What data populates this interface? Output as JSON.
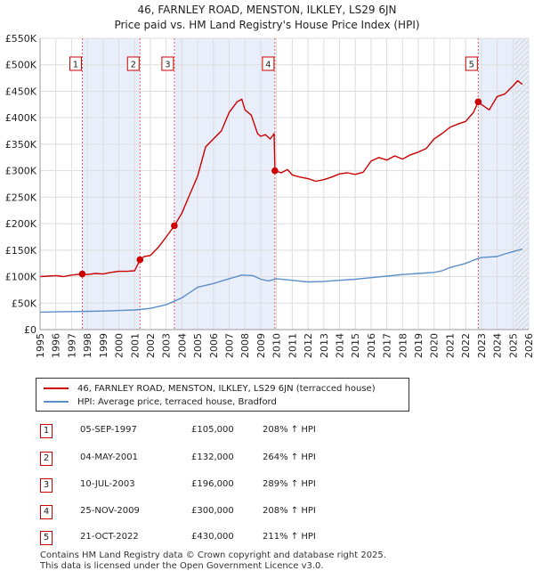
{
  "header": {
    "title": "46, FARNLEY ROAD, MENSTON, ILKLEY, LS29 6JN",
    "subtitle": "Price paid vs. HM Land Registry's House Price Index (HPI)"
  },
  "chart_data": {
    "type": "line",
    "title": "46, FARNLEY ROAD, MENSTON, ILKLEY, LS29 6JN",
    "subtitle": "Price paid vs. HM Land Registry's House Price Index (HPI)",
    "xlim": [
      1995,
      2026
    ],
    "ylim": [
      0,
      550000
    ],
    "x_ticks": [
      1995,
      1996,
      1997,
      1998,
      1999,
      2000,
      2001,
      2002,
      2003,
      2004,
      2005,
      2006,
      2007,
      2008,
      2009,
      2010,
      2011,
      2012,
      2013,
      2014,
      2015,
      2016,
      2017,
      2018,
      2019,
      2020,
      2021,
      2022,
      2023,
      2024,
      2025,
      2026
    ],
    "y_ticks": [
      {
        "value": 0,
        "label": "£0"
      },
      {
        "value": 50000,
        "label": "£50K"
      },
      {
        "value": 100000,
        "label": "£100K"
      },
      {
        "value": 150000,
        "label": "£150K"
      },
      {
        "value": 200000,
        "label": "£200K"
      },
      {
        "value": 250000,
        "label": "£250K"
      },
      {
        "value": 300000,
        "label": "£300K"
      },
      {
        "value": 350000,
        "label": "£350K"
      },
      {
        "value": 400000,
        "label": "£400K"
      },
      {
        "value": 450000,
        "label": "£450K"
      },
      {
        "value": 500000,
        "label": "£500K"
      },
      {
        "value": 550000,
        "label": "£550K"
      }
    ],
    "grid": true,
    "shaded_periods": [
      [
        1997.68,
        2001.34
      ],
      [
        2003.52,
        2009.9
      ],
      [
        2022.8,
        2026
      ]
    ],
    "projection_start": 2025.1,
    "series": [
      {
        "name": "46, FARNLEY ROAD, MENSTON, ILKLEY, LS29 6JN (terracced house)",
        "color": "#cc0000",
        "x": [
          1995,
          1995.5,
          1996,
          1996.5,
          1997,
          1997.68,
          1998,
          1998.5,
          1999,
          1999.5,
          2000,
          2000.5,
          2001,
          2001.34,
          2001.6,
          2002,
          2002.5,
          2003,
          2003.52,
          2004,
          2004.5,
          2005,
          2005.5,
          2006,
          2006.5,
          2007,
          2007.5,
          2007.8,
          2008,
          2008.4,
          2008.8,
          2009,
          2009.3,
          2009.6,
          2009.85,
          2009.9,
          2010.3,
          2010.7,
          2011,
          2011.5,
          2012,
          2012.5,
          2013,
          2013.5,
          2014,
          2014.5,
          2015,
          2015.5,
          2016,
          2016.5,
          2017,
          2017.5,
          2018,
          2018.5,
          2019,
          2019.5,
          2020,
          2020.5,
          2021,
          2021.5,
          2022,
          2022.5,
          2022.8,
          2023,
          2023.5,
          2024,
          2024.5,
          2025,
          2025.3,
          2025.6
        ],
        "values": [
          100000,
          101000,
          102000,
          100000,
          103000,
          105000,
          104000,
          106000,
          105000,
          108000,
          110000,
          110000,
          111000,
          132000,
          138000,
          140000,
          155000,
          175000,
          196000,
          220000,
          255000,
          290000,
          345000,
          360000,
          375000,
          410000,
          430000,
          435000,
          415000,
          405000,
          370000,
          365000,
          368000,
          360000,
          370000,
          300000,
          296000,
          302000,
          292000,
          288000,
          285000,
          280000,
          283000,
          288000,
          294000,
          296000,
          293000,
          297000,
          318000,
          325000,
          320000,
          328000,
          322000,
          330000,
          335000,
          342000,
          360000,
          370000,
          382000,
          388000,
          393000,
          410000,
          430000,
          425000,
          415000,
          440000,
          445000,
          460000,
          470000,
          463000
        ]
      },
      {
        "name": "HPI: Average price, terraced house, Bradford",
        "color": "#5b8fc9",
        "x": [
          1995,
          1996,
          1997,
          1998,
          1999,
          2000,
          2001,
          2002,
          2003,
          2004,
          2004.5,
          2005,
          2006,
          2007,
          2007.8,
          2008.5,
          2009,
          2009.5,
          2010,
          2011,
          2012,
          2013,
          2014,
          2015,
          2016,
          2017,
          2018,
          2019,
          2020,
          2020.5,
          2021,
          2022,
          2022.5,
          2023,
          2024,
          2024.5,
          2025,
          2025.6
        ],
        "values": [
          33000,
          33500,
          34000,
          34500,
          35000,
          36000,
          37000,
          40000,
          47000,
          60000,
          70000,
          80000,
          87000,
          96000,
          103000,
          102000,
          95000,
          92000,
          96000,
          93000,
          90000,
          91000,
          93000,
          95000,
          98000,
          101000,
          104000,
          106000,
          108000,
          111000,
          117000,
          125000,
          131000,
          136000,
          138000,
          143000,
          147000,
          152000
        ]
      }
    ],
    "transactions": [
      {
        "num": "1",
        "x": 1997.68,
        "price": 105000,
        "date": "05-SEP-1997",
        "price_label": "£105,000",
        "hpi_label": "208% ↑ HPI"
      },
      {
        "num": "2",
        "x": 2001.34,
        "price": 132000,
        "date": "04-MAY-2001",
        "price_label": "£132,000",
        "hpi_label": "264% ↑ HPI"
      },
      {
        "num": "3",
        "x": 2003.52,
        "price": 196000,
        "date": "10-JUL-2003",
        "price_label": "£196,000",
        "hpi_label": "289% ↑ HPI"
      },
      {
        "num": "4",
        "x": 2009.9,
        "price": 300000,
        "date": "25-NOV-2009",
        "price_label": "£300,000",
        "hpi_label": "208% ↑ HPI"
      },
      {
        "num": "5",
        "x": 2022.8,
        "price": 430000,
        "date": "21-OCT-2022",
        "price_label": "£430,000",
        "hpi_label": "211% ↑ HPI"
      }
    ]
  },
  "legend": {
    "property_label": "46, FARNLEY ROAD, MENSTON, ILKLEY, LS29 6JN (terracced house)",
    "hpi_label": "HPI: Average price, terraced house, Bradford",
    "property_color": "#cc0000",
    "hpi_color": "#5b8fc9"
  },
  "footer": {
    "line1": "Contains HM Land Registry data © Crown copyright and database right 2025.",
    "line2": "This data is licensed under the Open Government Licence v3.0."
  }
}
